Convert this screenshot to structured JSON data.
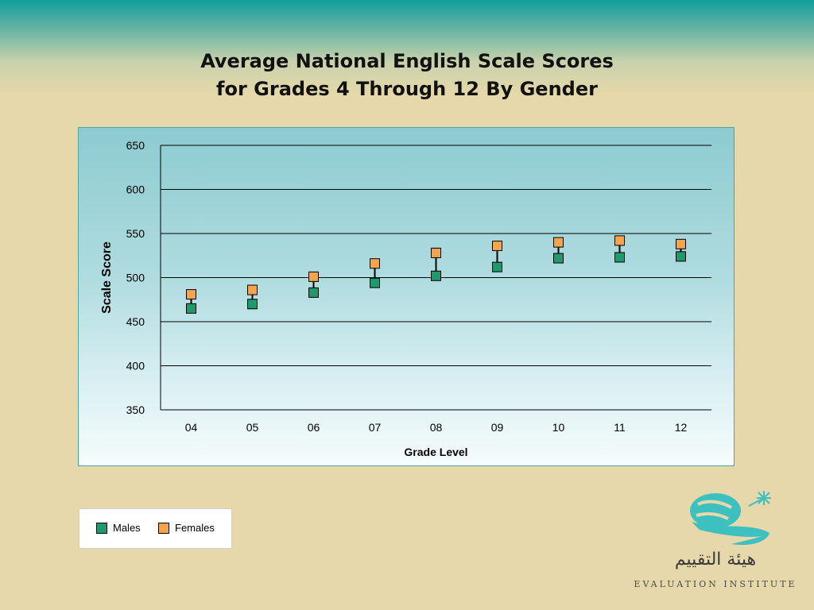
{
  "title": {
    "line1": "Average National English Scale Scores",
    "line2": "for Grades 4 Through 12 By Gender"
  },
  "legend": [
    {
      "name": "Males",
      "color": "#1e9a6e"
    },
    {
      "name": "Females",
      "color": "#f4a44a"
    }
  ],
  "logo": {
    "icon": "evaluation-institute-logo-icon",
    "arabic_text": "هيئة التقييم",
    "latin_text": "EVALUATION INSTITUTE",
    "color": "#3cc0c0"
  },
  "chart_data": {
    "type": "scatter",
    "xlabel": "Grade Level",
    "ylabel": "Scale Score",
    "categories": [
      "04",
      "05",
      "06",
      "07",
      "08",
      "09",
      "10",
      "11",
      "12"
    ],
    "yticks": [
      "650",
      "600",
      "550",
      "500",
      "450",
      "400",
      "350"
    ],
    "ylim": [
      350,
      650
    ],
    "grid": true,
    "legend_position": "bottom-left",
    "series": [
      {
        "name": "Males",
        "color": "#1e9a6e",
        "values": [
          465,
          470,
          483,
          494,
          502,
          512,
          522,
          523,
          524
        ]
      },
      {
        "name": "Females",
        "color": "#f4a44a",
        "values": [
          481,
          486,
          501,
          516,
          528,
          536,
          540,
          542,
          538
        ]
      }
    ]
  }
}
